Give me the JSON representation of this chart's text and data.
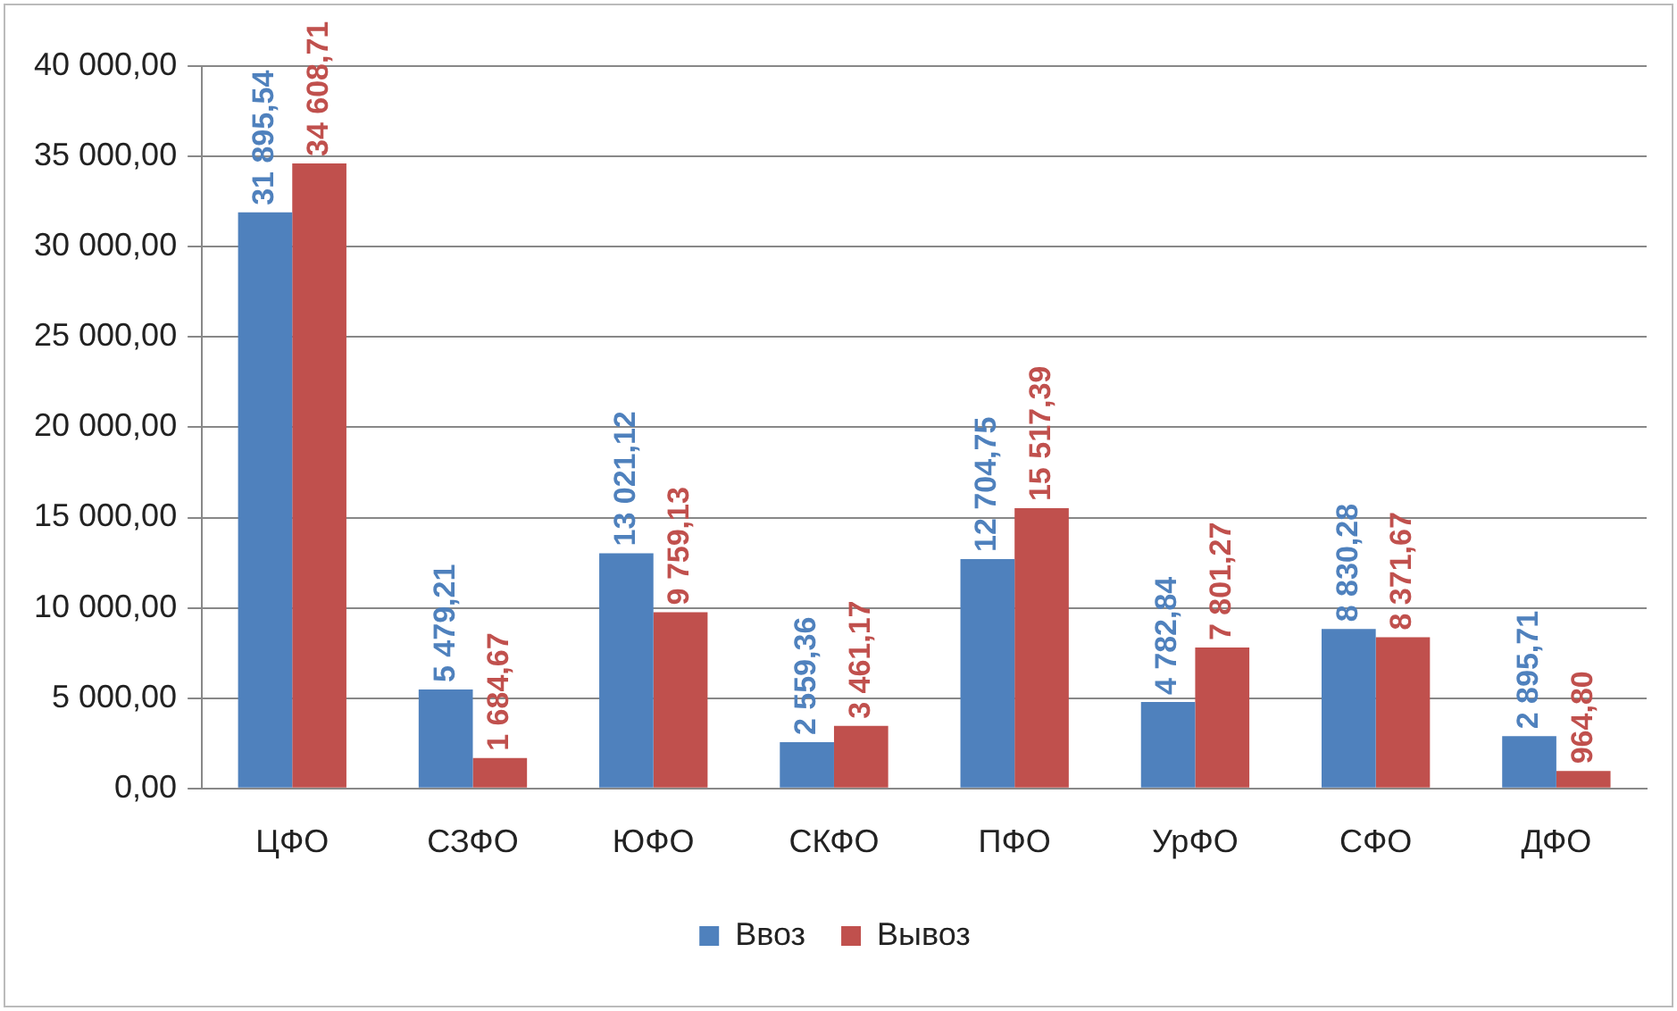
{
  "chart_data": {
    "type": "bar",
    "categories": [
      "ЦФО",
      "СЗФО",
      "ЮФО",
      "СКФО",
      "ПФО",
      "УрФО",
      "СФО",
      "ДФО"
    ],
    "series": [
      {
        "name": "Ввоз",
        "color": "#4f81bd",
        "values": [
          31895.54,
          5479.21,
          13021.12,
          2559.36,
          12704.75,
          4782.84,
          8830.28,
          2895.71
        ],
        "value_labels": [
          "31 895,54",
          "5 479,21",
          "13 021,12",
          "2 559,36",
          "12 704,75",
          "4 782,84",
          "8 830,28",
          "2 895,71"
        ]
      },
      {
        "name": "Вывоз",
        "color": "#c0504d",
        "values": [
          34608.71,
          1684.67,
          9759.13,
          3461.17,
          15517.39,
          7801.27,
          8371.67,
          964.8
        ],
        "value_labels": [
          "34 608,71",
          "1 684,67",
          "9 759,13",
          "3 461,17",
          "15 517,39",
          "7 801,27",
          "8 371,67",
          "964,80"
        ]
      }
    ],
    "ylim": [
      0,
      40000
    ],
    "yticks": [
      {
        "value": 0,
        "label": "0,00"
      },
      {
        "value": 5000,
        "label": "5 000,00"
      },
      {
        "value": 10000,
        "label": "10 000,00"
      },
      {
        "value": 15000,
        "label": "15 000,00"
      },
      {
        "value": 20000,
        "label": "20 000,00"
      },
      {
        "value": 25000,
        "label": "25 000,00"
      },
      {
        "value": 30000,
        "label": "30 000,00"
      },
      {
        "value": 35000,
        "label": "35 000,00"
      },
      {
        "value": 40000,
        "label": "40 000,00"
      }
    ],
    "grid": "y",
    "legend": "bottom"
  }
}
